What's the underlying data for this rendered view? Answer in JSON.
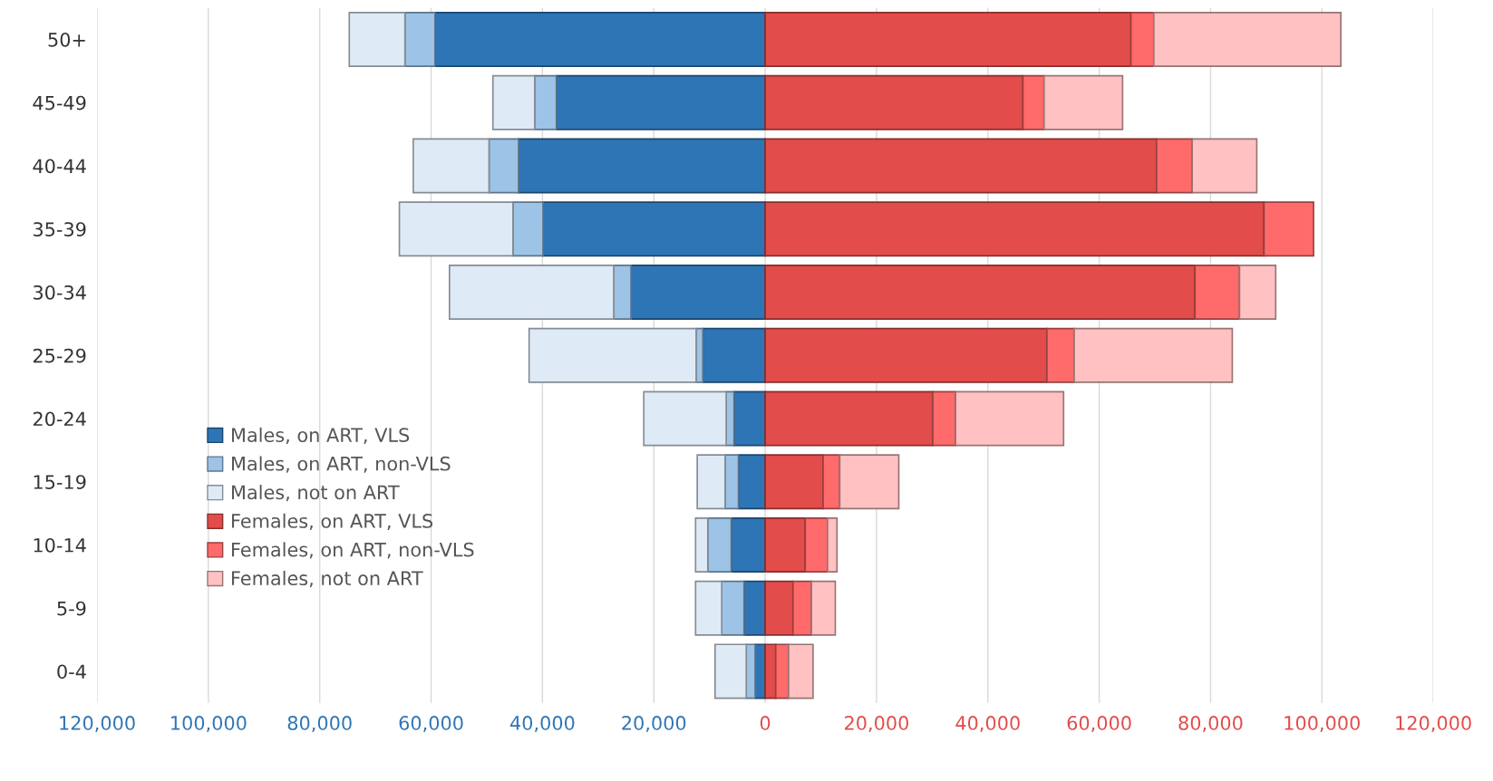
{
  "chart_data": {
    "type": "bar",
    "orientation": "horizontal",
    "stacked": true,
    "categories": [
      "50+",
      "45-49",
      "40-44",
      "35-39",
      "30-34",
      "25-29",
      "20-24",
      "15-19",
      "10-14",
      "5-9",
      "0-4"
    ],
    "series": [
      {
        "name": "Males, on ART, VLS",
        "color": "#2e75b6",
        "values": [
          -59300,
          -37500,
          -44300,
          -39900,
          -24100,
          -11200,
          -5600,
          -4800,
          -6100,
          -3800,
          -1800
        ]
      },
      {
        "name": "Males, on ART, non-VLS",
        "color": "#9dc3e6",
        "values": [
          -5400,
          -3900,
          -5300,
          -5400,
          -3100,
          -1200,
          -1400,
          -2400,
          -4200,
          -4000,
          -1600
        ]
      },
      {
        "name": "Males, not on ART",
        "color": "#deebf7",
        "values": [
          -10000,
          -7500,
          -13600,
          -20400,
          -29500,
          -30000,
          -14800,
          -5000,
          -2200,
          -4700,
          -5600
        ]
      },
      {
        "name": "Females, on ART, VLS",
        "color": "#e24c4a",
        "values": [
          65700,
          46300,
          70300,
          89600,
          77200,
          50600,
          30100,
          10400,
          7200,
          5000,
          1900
        ]
      },
      {
        "name": "Females, on ART, non-VLS",
        "color": "#ff6b6b",
        "values": [
          4100,
          3800,
          6400,
          8900,
          8000,
          4900,
          4100,
          3000,
          4000,
          3300,
          2300
        ]
      },
      {
        "name": "Females, not on ART",
        "color": "#ffc1c1",
        "values": [
          33600,
          14100,
          11600,
          0,
          6500,
          28400,
          19400,
          10600,
          1700,
          4300,
          4400
        ]
      }
    ],
    "xlim": [
      -120000,
      120000
    ],
    "xticks": [
      {
        "value": -120000,
        "label": "120,000"
      },
      {
        "value": -100000,
        "label": "100,000"
      },
      {
        "value": -80000,
        "label": "80,000"
      },
      {
        "value": -60000,
        "label": "60,000"
      },
      {
        "value": -40000,
        "label": "40,000"
      },
      {
        "value": -20000,
        "label": "20,000"
      },
      0,
      {
        "value": 20000,
        "label": "20,000"
      },
      {
        "value": 40000,
        "label": "40,000"
      },
      {
        "value": 60000,
        "label": "60,000"
      },
      {
        "value": 80000,
        "label": "80,000"
      },
      {
        "value": 100000,
        "label": "100,000"
      },
      {
        "value": 120000,
        "label": "120,000"
      }
    ],
    "grid": "x",
    "legend": "left"
  }
}
